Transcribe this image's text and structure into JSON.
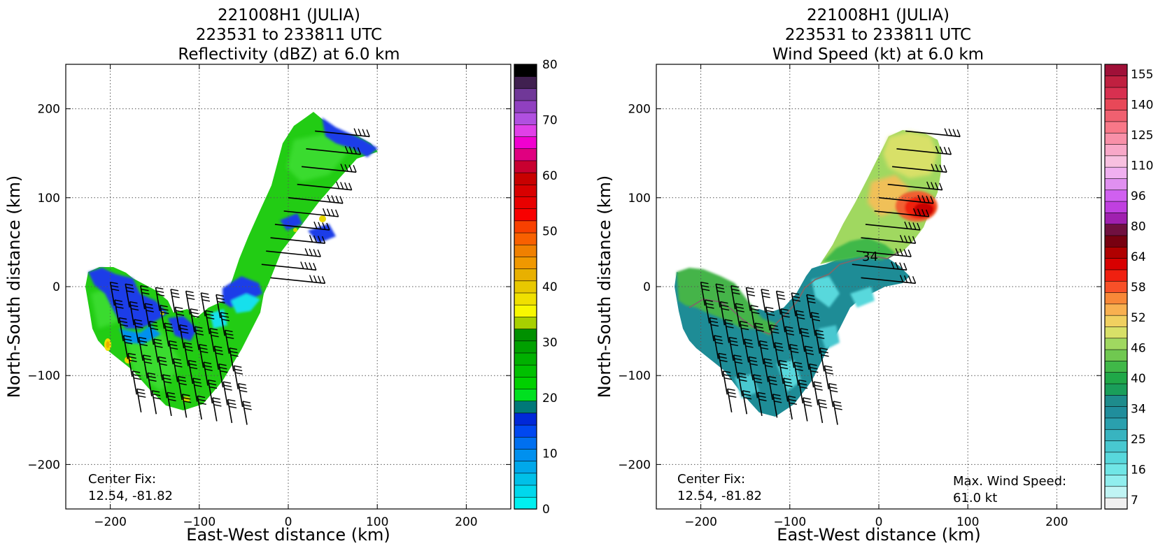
{
  "chart_data": [
    {
      "type": "heatmap",
      "title": [
        "221008H1 (JULIA)",
        "223531 to 233811 UTC",
        "Reflectivity (dBZ) at 6.0 km"
      ],
      "xlabel": "East-West distance (km)",
      "ylabel": "North-South distance (km)",
      "xlim": [
        -250,
        250
      ],
      "ylim": [
        -250,
        250
      ],
      "xticks": [
        -200,
        -100,
        0,
        100,
        200
      ],
      "yticks": [
        -200,
        -100,
        0,
        100,
        200
      ],
      "xtick_labels": [
        "−200",
        "−100",
        "0",
        "100",
        "200"
      ],
      "ytick_labels": [
        "−200",
        "−100",
        "0",
        "100",
        "200"
      ],
      "grid": true,
      "annotations": {
        "center_fix_label": "Center Fix:",
        "center_fix_value": "12.54, -81.82"
      },
      "colorbar": {
        "min": 0,
        "max": 80,
        "tick_values": [
          0,
          10,
          20,
          30,
          40,
          50,
          60,
          70,
          80
        ],
        "tick_labels": [
          "0",
          "10",
          "20",
          "30",
          "40",
          "50",
          "60",
          "70",
          "80"
        ],
        "colors": [
          "#00f0f0",
          "#00d8ec",
          "#00c0e8",
          "#00a8ea",
          "#0090ee",
          "#0070f0",
          "#0048f0",
          "#0028d8",
          "#007878",
          "#00e020",
          "#00d000",
          "#00c000",
          "#00b000",
          "#00a000",
          "#009000",
          "#a8d000",
          "#f8f800",
          "#f0e000",
          "#e8c800",
          "#e8b000",
          "#f09800",
          "#f08000",
          "#f86000",
          "#f84000",
          "#f80000",
          "#e80000",
          "#d80000",
          "#c80000",
          "#c80030",
          "#e00080",
          "#f000d0",
          "#e040e8",
          "#b050e0",
          "#9040c0",
          "#703898",
          "#402050",
          "#000000"
        ]
      },
      "field_shape": "V-shaped swath: southwest arm from (-220,15) to (-60,-150); northeast arm from (-70,-110) to (110,190)",
      "wind_barbs": "present"
    },
    {
      "type": "heatmap",
      "title": [
        "221008H1 (JULIA)",
        "223531 to 233811 UTC",
        "Wind Speed (kt) at 6.0 km"
      ],
      "xlabel": "East-West distance (km)",
      "ylabel": "North-South distance (km)",
      "xlim": [
        -250,
        250
      ],
      "ylim": [
        -250,
        250
      ],
      "xticks": [
        -200,
        -100,
        0,
        100,
        200
      ],
      "yticks": [
        -200,
        -100,
        0,
        100,
        200
      ],
      "xtick_labels": [
        "−200",
        "−100",
        "0",
        "100",
        "200"
      ],
      "ytick_labels": [
        "−200",
        "−100",
        "0",
        "100",
        "200"
      ],
      "grid": true,
      "annotations": {
        "center_fix_label": "Center Fix:",
        "center_fix_value": "12.54, -81.82",
        "max_wind_label": "Max. Wind Speed:",
        "max_wind_value": "61.0 kt"
      },
      "contour_label": "34",
      "colorbar": {
        "tick_labels": [
          "7",
          "16",
          "25",
          "34",
          "40",
          "46",
          "52",
          "58",
          "64",
          "80",
          "96",
          "110",
          "125",
          "140",
          "155"
        ],
        "colors": [
          "#f0f0f0",
          "#c0f4f4",
          "#90eeee",
          "#70e6e6",
          "#58d8dc",
          "#48c8d0",
          "#38b4c0",
          "#2aa0ae",
          "#208e9c",
          "#1e8c8c",
          "#1a9e5a",
          "#20a848",
          "#40b848",
          "#70c850",
          "#a0d860",
          "#d8e068",
          "#f0d060",
          "#f8b050",
          "#f88838",
          "#f85028",
          "#f02010",
          "#d80000",
          "#b00000",
          "#780010",
          "#701040",
          "#a020b0",
          "#c040e0",
          "#d060f0",
          "#e090f0",
          "#f0b0f0",
          "#f8c0e0",
          "#f8a8c8",
          "#f890a8",
          "#f87888",
          "#f06070",
          "#e84858",
          "#d83050",
          "#c02040",
          "#a01038"
        ]
      },
      "field_shape": "V-shaped swath; strongest winds (red) near (45,85)",
      "wind_barbs": "present"
    }
  ]
}
